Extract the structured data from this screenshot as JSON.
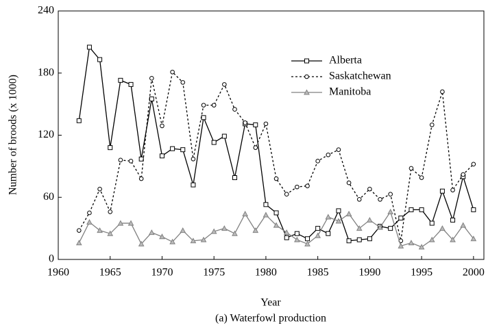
{
  "chart_data": {
    "type": "line",
    "title": "(a) Waterfowl production",
    "x_label": "Year",
    "y_label": "Number of broods (x 1000)",
    "x": [
      1962,
      1963,
      1964,
      1965,
      1966,
      1967,
      1968,
      1969,
      1970,
      1971,
      1972,
      1973,
      1974,
      1975,
      1976,
      1977,
      1978,
      1979,
      1980,
      1981,
      1982,
      1983,
      1984,
      1985,
      1986,
      1987,
      1988,
      1989,
      1990,
      1991,
      1992,
      1993,
      1994,
      1995,
      1996,
      1997,
      1998,
      1999,
      2000
    ],
    "series": [
      {
        "name": "Alberta",
        "color": "#000000",
        "dash": "solid",
        "marker": "square",
        "values": [
          134,
          205,
          193,
          108,
          173,
          169,
          97,
          155,
          100,
          107,
          106,
          72,
          137,
          113,
          119,
          79,
          131,
          130,
          53,
          45,
          21,
          25,
          20,
          30,
          25,
          47,
          18,
          19,
          20,
          32,
          30,
          40,
          48,
          48,
          35,
          66,
          38,
          80,
          48
        ]
      },
      {
        "name": "Saskatchewan",
        "color": "#000000",
        "dash": "dotted",
        "marker": "circle",
        "values": [
          28,
          45,
          68,
          46,
          96,
          95,
          78,
          175,
          129,
          181,
          171,
          97,
          149,
          149,
          169,
          145,
          132,
          108,
          131,
          78,
          63,
          70,
          71,
          95,
          101,
          106,
          74,
          58,
          68,
          58,
          63,
          18,
          88,
          79,
          130,
          162,
          67,
          82,
          92
        ]
      },
      {
        "name": "Manitoba",
        "color": "#808080",
        "dash": "solid",
        "marker": "triangle",
        "values": [
          16,
          36,
          28,
          25,
          35,
          35,
          15,
          26,
          22,
          17,
          28,
          18,
          19,
          27,
          30,
          25,
          44,
          28,
          43,
          33,
          26,
          19,
          15,
          23,
          41,
          37,
          44,
          30,
          38,
          31,
          46,
          13,
          16,
          12,
          19,
          30,
          19,
          33,
          20
        ]
      }
    ],
    "xlim": [
      1960,
      2001
    ],
    "xticks": [
      1960,
      1965,
      1970,
      1975,
      1980,
      1985,
      1990,
      1995,
      2000
    ],
    "ylim": [
      0,
      240
    ],
    "yticks": [
      0,
      60,
      120,
      180,
      240
    ],
    "legend": "upper right"
  }
}
